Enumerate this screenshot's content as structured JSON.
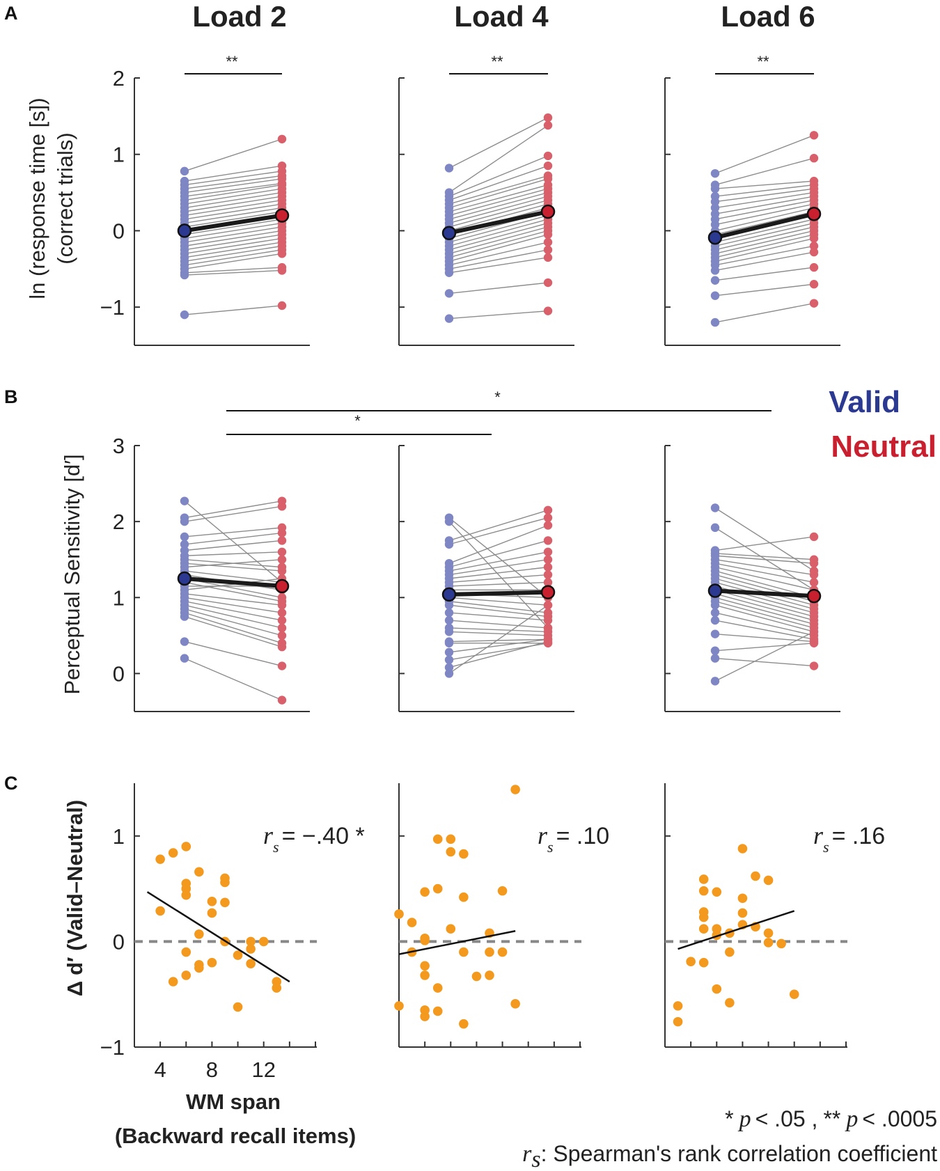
{
  "figure": {
    "panel_labels": [
      "A",
      "B",
      "C"
    ],
    "legend": {
      "valid": {
        "label": "Valid",
        "color": "#2b3990"
      },
      "neutral": {
        "label": "Neutral",
        "color": "#c8202f"
      }
    },
    "colors": {
      "valid_dot": "#7f86c4",
      "neutral_dot": "#d9606b",
      "line": "#8c8c8c",
      "mean_line": "#1a1a1a",
      "mean_valid": "#2b3990",
      "mean_neutral": "#c8202f",
      "scatter_dot": "#f39a1e",
      "zero_dash": "#888888"
    },
    "notes": {
      "sig_star1": "*",
      "sig_p1": "p",
      "sig_text1": "< .05 ,",
      "sig_star2": "**",
      "sig_p2": "p",
      "sig_text2": "< .0005",
      "rs_symbol": "r",
      "rs_sub": "s",
      "rs_text": ": Spearman's rank correlation coefficient"
    }
  },
  "chart_data": [
    {
      "id": "A",
      "type": "line",
      "ylabel_lines": [
        "ln (response time [s])",
        "(correct trials)"
      ],
      "ylim": [
        -1.5,
        2
      ],
      "yticks": [
        -1,
        0,
        1,
        2
      ],
      "ytick_labels": [
        "−1",
        "0",
        "1",
        "2"
      ],
      "panels": [
        {
          "title": "Load 2",
          "sig": "**",
          "pairs": [
            [
              0.78,
              1.2
            ],
            [
              0.65,
              0.85
            ],
            [
              0.6,
              0.78
            ],
            [
              0.55,
              0.72
            ],
            [
              0.5,
              0.68
            ],
            [
              0.45,
              0.62
            ],
            [
              0.4,
              0.6
            ],
            [
              0.35,
              0.55
            ],
            [
              0.3,
              0.5
            ],
            [
              0.25,
              0.45
            ],
            [
              0.2,
              0.4
            ],
            [
              0.15,
              0.35
            ],
            [
              0.1,
              0.3
            ],
            [
              0.05,
              0.25
            ],
            [
              0.0,
              0.2
            ],
            [
              -0.05,
              0.15
            ],
            [
              -0.1,
              0.1
            ],
            [
              -0.15,
              0.05
            ],
            [
              -0.2,
              0.0
            ],
            [
              -0.25,
              -0.05
            ],
            [
              -0.3,
              -0.1
            ],
            [
              -0.35,
              -0.15
            ],
            [
              -0.4,
              -0.2
            ],
            [
              -0.45,
              -0.25
            ],
            [
              -0.5,
              -0.3
            ],
            [
              -0.55,
              -0.48
            ],
            [
              -0.58,
              -0.52
            ],
            [
              -1.1,
              -0.98
            ]
          ],
          "mean": [
            0.0,
            0.2
          ]
        },
        {
          "title": "Load 4",
          "sig": "**",
          "pairs": [
            [
              0.82,
              1.48
            ],
            [
              0.5,
              1.38
            ],
            [
              0.45,
              0.98
            ],
            [
              0.4,
              0.85
            ],
            [
              0.35,
              0.72
            ],
            [
              0.3,
              0.68
            ],
            [
              0.25,
              0.6
            ],
            [
              0.2,
              0.55
            ],
            [
              0.15,
              0.5
            ],
            [
              0.1,
              0.45
            ],
            [
              0.05,
              0.4
            ],
            [
              0.0,
              0.35
            ],
            [
              -0.05,
              0.3
            ],
            [
              -0.1,
              0.25
            ],
            [
              -0.15,
              0.2
            ],
            [
              -0.2,
              0.15
            ],
            [
              -0.25,
              0.1
            ],
            [
              -0.3,
              0.05
            ],
            [
              -0.35,
              0.0
            ],
            [
              -0.4,
              -0.05
            ],
            [
              -0.45,
              -0.15
            ],
            [
              -0.5,
              -0.25
            ],
            [
              -0.55,
              -0.35
            ],
            [
              -0.82,
              -0.68
            ],
            [
              -1.15,
              -1.05
            ]
          ],
          "mean": [
            -0.03,
            0.25
          ]
        },
        {
          "title": "Load 6",
          "sig": "**",
          "pairs": [
            [
              0.75,
              1.25
            ],
            [
              0.6,
              0.95
            ],
            [
              0.55,
              0.65
            ],
            [
              0.45,
              0.6
            ],
            [
              0.38,
              0.55
            ],
            [
              0.3,
              0.5
            ],
            [
              0.22,
              0.45
            ],
            [
              0.15,
              0.4
            ],
            [
              0.08,
              0.35
            ],
            [
              0.0,
              0.3
            ],
            [
              -0.05,
              0.25
            ],
            [
              -0.1,
              0.2
            ],
            [
              -0.15,
              0.15
            ],
            [
              -0.2,
              0.1
            ],
            [
              -0.25,
              0.05
            ],
            [
              -0.3,
              0.0
            ],
            [
              -0.35,
              -0.05
            ],
            [
              -0.4,
              -0.1
            ],
            [
              -0.45,
              -0.2
            ],
            [
              -0.52,
              -0.28
            ],
            [
              -0.65,
              -0.48
            ],
            [
              -0.85,
              -0.7
            ],
            [
              -1.2,
              -0.95
            ]
          ],
          "mean": [
            -0.09,
            0.22
          ]
        }
      ]
    },
    {
      "id": "B",
      "type": "line",
      "ylabel": "Perceptual Sensitivity [d′]",
      "ylim": [
        -0.5,
        3
      ],
      "yticks": [
        0,
        1,
        2,
        3
      ],
      "ytick_labels": [
        "0",
        "1",
        "2",
        "3"
      ],
      "comparisons": [
        {
          "from": "Load 2",
          "to": "Load 6",
          "sig": "*"
        },
        {
          "from": "Load 2",
          "to": "Load 4",
          "sig": "*"
        }
      ],
      "panels": [
        {
          "title": "Load 2",
          "pairs": [
            [
              2.27,
              1.2
            ],
            [
              2.05,
              2.27
            ],
            [
              2.0,
              2.2
            ],
            [
              1.8,
              1.92
            ],
            [
              1.7,
              1.85
            ],
            [
              1.62,
              1.75
            ],
            [
              1.55,
              1.6
            ],
            [
              1.5,
              1.4
            ],
            [
              1.45,
              1.35
            ],
            [
              1.4,
              1.5
            ],
            [
              1.35,
              1.2
            ],
            [
              1.3,
              1.1
            ],
            [
              1.25,
              1.0
            ],
            [
              1.2,
              0.95
            ],
            [
              1.15,
              1.15
            ],
            [
              1.1,
              1.25
            ],
            [
              1.05,
              0.9
            ],
            [
              1.0,
              0.8
            ],
            [
              0.95,
              0.7
            ],
            [
              0.9,
              0.6
            ],
            [
              0.85,
              0.5
            ],
            [
              0.8,
              0.4
            ],
            [
              0.75,
              0.35
            ],
            [
              0.42,
              0.1
            ],
            [
              0.2,
              -0.35
            ]
          ],
          "mean": [
            1.25,
            1.15
          ]
        },
        {
          "title": "Load 4",
          "pairs": [
            [
              2.05,
              1.0
            ],
            [
              2.0,
              0.6
            ],
            [
              1.75,
              2.15
            ],
            [
              1.7,
              2.05
            ],
            [
              1.45,
              1.95
            ],
            [
              1.4,
              1.75
            ],
            [
              1.35,
              1.6
            ],
            [
              1.3,
              1.5
            ],
            [
              1.25,
              1.4
            ],
            [
              1.2,
              1.3
            ],
            [
              1.15,
              1.2
            ],
            [
              1.1,
              1.1
            ],
            [
              1.05,
              1.0
            ],
            [
              1.0,
              0.9
            ],
            [
              0.95,
              0.8
            ],
            [
              0.9,
              0.75
            ],
            [
              0.8,
              0.7
            ],
            [
              0.7,
              0.6
            ],
            [
              0.6,
              0.55
            ],
            [
              0.55,
              0.5
            ],
            [
              0.42,
              0.45
            ],
            [
              0.4,
              0.4
            ],
            [
              0.28,
              0.45
            ],
            [
              0.18,
              0.4
            ],
            [
              0.08,
              0.42
            ],
            [
              0.0,
              0.9
            ]
          ],
          "mean": [
            1.04,
            1.07
          ]
        },
        {
          "title": "Load 6",
          "pairs": [
            [
              2.18,
              1.35
            ],
            [
              1.92,
              1.1
            ],
            [
              1.62,
              1.8
            ],
            [
              1.58,
              1.5
            ],
            [
              1.55,
              1.45
            ],
            [
              1.5,
              1.3
            ],
            [
              1.45,
              1.2
            ],
            [
              1.4,
              1.1
            ],
            [
              1.35,
              1.0
            ],
            [
              1.3,
              0.95
            ],
            [
              1.25,
              0.9
            ],
            [
              1.2,
              0.85
            ],
            [
              1.15,
              0.8
            ],
            [
              1.1,
              0.75
            ],
            [
              1.05,
              0.7
            ],
            [
              1.0,
              0.65
            ],
            [
              0.95,
              0.6
            ],
            [
              0.9,
              0.55
            ],
            [
              0.8,
              0.5
            ],
            [
              0.7,
              0.45
            ],
            [
              0.52,
              0.42
            ],
            [
              0.3,
              0.4
            ],
            [
              0.2,
              0.1
            ],
            [
              -0.1,
              0.55
            ]
          ],
          "mean": [
            1.09,
            1.02
          ]
        }
      ]
    },
    {
      "id": "C",
      "type": "scatter",
      "ylabel_symbol": "Δ",
      "ylabel_rest": "d′ (Valid–Neutral)",
      "xlabel_lines": [
        "WM span",
        "(Backward recall items)"
      ],
      "xlim": [
        2,
        16
      ],
      "ylim": [
        -1,
        1.5
      ],
      "xticks": [
        4,
        8,
        12
      ],
      "xtick_labels": [
        "4",
        "8",
        "12"
      ],
      "yticks": [
        -1,
        0,
        1
      ],
      "ytick_labels": [
        "−1",
        "0",
        "1"
      ],
      "panels": [
        {
          "rs_value": "= −.40 *",
          "points": [
            [
              4,
              0.78
            ],
            [
              4,
              0.29
            ],
            [
              5,
              0.84
            ],
            [
              5,
              -0.38
            ],
            [
              6,
              0.9
            ],
            [
              6,
              0.55
            ],
            [
              6,
              0.5
            ],
            [
              6,
              0.44
            ],
            [
              6,
              -0.1
            ],
            [
              6,
              -0.32
            ],
            [
              7,
              0.66
            ],
            [
              7,
              0.07
            ],
            [
              7,
              -0.22
            ],
            [
              7,
              -0.25
            ],
            [
              8,
              0.38
            ],
            [
              8,
              0.27
            ],
            [
              8,
              -0.2
            ],
            [
              9,
              0.6
            ],
            [
              9,
              0.56
            ],
            [
              9,
              0.37
            ],
            [
              9,
              0.0
            ],
            [
              10,
              -0.13
            ],
            [
              10,
              -0.62
            ],
            [
              11,
              0.0
            ],
            [
              11,
              -0.07
            ],
            [
              11,
              -0.21
            ],
            [
              12,
              0.0
            ],
            [
              13,
              -0.38
            ],
            [
              13,
              -0.44
            ]
          ],
          "fit": [
            [
              3,
              0.47
            ],
            [
              14,
              -0.38
            ]
          ]
        },
        {
          "rs_value": "= .10",
          "points": [
            [
              2,
              0.26
            ],
            [
              2,
              -0.61
            ],
            [
              3,
              0.18
            ],
            [
              3,
              -0.1
            ],
            [
              4,
              0.47
            ],
            [
              4,
              0.03
            ],
            [
              4,
              0.01
            ],
            [
              4,
              -0.23
            ],
            [
              4,
              -0.32
            ],
            [
              4,
              -0.65
            ],
            [
              4,
              -0.71
            ],
            [
              5,
              0.97
            ],
            [
              5,
              0.5
            ],
            [
              5,
              -0.44
            ],
            [
              5,
              -0.66
            ],
            [
              6,
              0.97
            ],
            [
              6,
              0.85
            ],
            [
              6,
              0.12
            ],
            [
              7,
              0.83
            ],
            [
              7,
              0.42
            ],
            [
              7,
              -0.1
            ],
            [
              7,
              -0.78
            ],
            [
              8,
              -0.33
            ],
            [
              9,
              0.08
            ],
            [
              9,
              -0.1
            ],
            [
              9,
              -0.32
            ],
            [
              10,
              0.48
            ],
            [
              10,
              -0.1
            ],
            [
              11,
              1.44
            ],
            [
              11,
              -0.59
            ]
          ],
          "fit": [
            [
              2,
              -0.12
            ],
            [
              11,
              0.1
            ]
          ]
        },
        {
          "rs_value": "= .16",
          "points": [
            [
              3,
              -0.61
            ],
            [
              3,
              -0.76
            ],
            [
              4,
              -0.19
            ],
            [
              5,
              0.59
            ],
            [
              5,
              0.48
            ],
            [
              5,
              0.28
            ],
            [
              5,
              0.23
            ],
            [
              5,
              0.12
            ],
            [
              5,
              -0.2
            ],
            [
              6,
              0.47
            ],
            [
              6,
              0.12
            ],
            [
              6,
              0.06
            ],
            [
              6,
              -0.45
            ],
            [
              7,
              0.08
            ],
            [
              7,
              -0.1
            ],
            [
              7,
              -0.58
            ],
            [
              8,
              0.88
            ],
            [
              8,
              0.41
            ],
            [
              8,
              0.27
            ],
            [
              8,
              0.16
            ],
            [
              9,
              0.62
            ],
            [
              9,
              0.14
            ],
            [
              10,
              0.58
            ],
            [
              10,
              0.08
            ],
            [
              10,
              -0.01
            ],
            [
              11,
              -0.02
            ],
            [
              12,
              -0.5
            ]
          ],
          "fit": [
            [
              3,
              -0.07
            ],
            [
              12,
              0.29
            ]
          ]
        }
      ]
    }
  ]
}
